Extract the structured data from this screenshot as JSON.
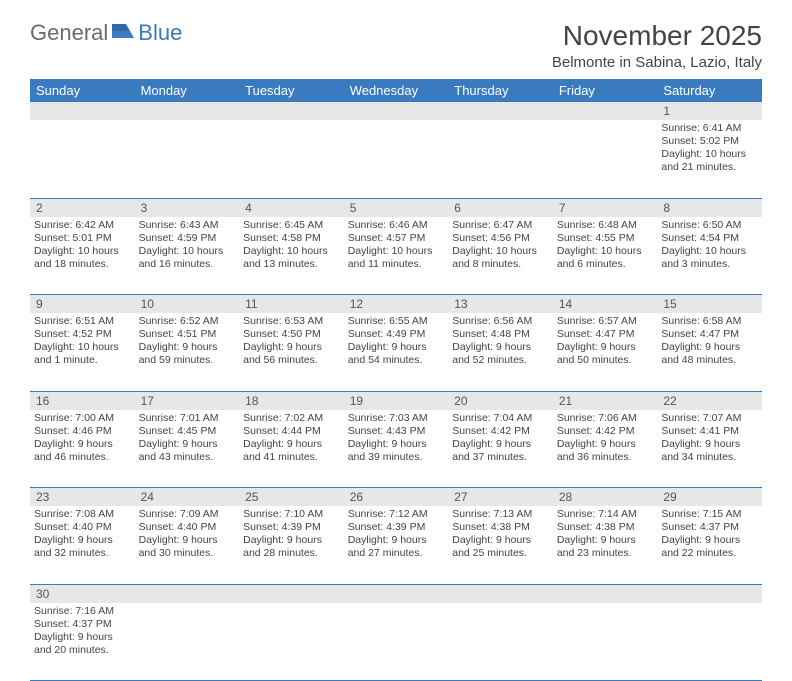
{
  "logo": {
    "text1": "General",
    "text2": "Blue"
  },
  "title": "November 2025",
  "location": "Belmonte in Sabina, Lazio, Italy",
  "colors": {
    "header_bg": "#3a7abf",
    "daynum_bg": "#e7e7e7",
    "text": "#444444"
  },
  "day_headers": [
    "Sunday",
    "Monday",
    "Tuesday",
    "Wednesday",
    "Thursday",
    "Friday",
    "Saturday"
  ],
  "weeks": [
    [
      null,
      null,
      null,
      null,
      null,
      null,
      {
        "n": "1",
        "sr": "Sunrise: 6:41 AM",
        "ss": "Sunset: 5:02 PM",
        "dl": "Daylight: 10 hours and 21 minutes."
      }
    ],
    [
      {
        "n": "2",
        "sr": "Sunrise: 6:42 AM",
        "ss": "Sunset: 5:01 PM",
        "dl": "Daylight: 10 hours and 18 minutes."
      },
      {
        "n": "3",
        "sr": "Sunrise: 6:43 AM",
        "ss": "Sunset: 4:59 PM",
        "dl": "Daylight: 10 hours and 16 minutes."
      },
      {
        "n": "4",
        "sr": "Sunrise: 6:45 AM",
        "ss": "Sunset: 4:58 PM",
        "dl": "Daylight: 10 hours and 13 minutes."
      },
      {
        "n": "5",
        "sr": "Sunrise: 6:46 AM",
        "ss": "Sunset: 4:57 PM",
        "dl": "Daylight: 10 hours and 11 minutes."
      },
      {
        "n": "6",
        "sr": "Sunrise: 6:47 AM",
        "ss": "Sunset: 4:56 PM",
        "dl": "Daylight: 10 hours and 8 minutes."
      },
      {
        "n": "7",
        "sr": "Sunrise: 6:48 AM",
        "ss": "Sunset: 4:55 PM",
        "dl": "Daylight: 10 hours and 6 minutes."
      },
      {
        "n": "8",
        "sr": "Sunrise: 6:50 AM",
        "ss": "Sunset: 4:54 PM",
        "dl": "Daylight: 10 hours and 3 minutes."
      }
    ],
    [
      {
        "n": "9",
        "sr": "Sunrise: 6:51 AM",
        "ss": "Sunset: 4:52 PM",
        "dl": "Daylight: 10 hours and 1 minute."
      },
      {
        "n": "10",
        "sr": "Sunrise: 6:52 AM",
        "ss": "Sunset: 4:51 PM",
        "dl": "Daylight: 9 hours and 59 minutes."
      },
      {
        "n": "11",
        "sr": "Sunrise: 6:53 AM",
        "ss": "Sunset: 4:50 PM",
        "dl": "Daylight: 9 hours and 56 minutes."
      },
      {
        "n": "12",
        "sr": "Sunrise: 6:55 AM",
        "ss": "Sunset: 4:49 PM",
        "dl": "Daylight: 9 hours and 54 minutes."
      },
      {
        "n": "13",
        "sr": "Sunrise: 6:56 AM",
        "ss": "Sunset: 4:48 PM",
        "dl": "Daylight: 9 hours and 52 minutes."
      },
      {
        "n": "14",
        "sr": "Sunrise: 6:57 AM",
        "ss": "Sunset: 4:47 PM",
        "dl": "Daylight: 9 hours and 50 minutes."
      },
      {
        "n": "15",
        "sr": "Sunrise: 6:58 AM",
        "ss": "Sunset: 4:47 PM",
        "dl": "Daylight: 9 hours and 48 minutes."
      }
    ],
    [
      {
        "n": "16",
        "sr": "Sunrise: 7:00 AM",
        "ss": "Sunset: 4:46 PM",
        "dl": "Daylight: 9 hours and 46 minutes."
      },
      {
        "n": "17",
        "sr": "Sunrise: 7:01 AM",
        "ss": "Sunset: 4:45 PM",
        "dl": "Daylight: 9 hours and 43 minutes."
      },
      {
        "n": "18",
        "sr": "Sunrise: 7:02 AM",
        "ss": "Sunset: 4:44 PM",
        "dl": "Daylight: 9 hours and 41 minutes."
      },
      {
        "n": "19",
        "sr": "Sunrise: 7:03 AM",
        "ss": "Sunset: 4:43 PM",
        "dl": "Daylight: 9 hours and 39 minutes."
      },
      {
        "n": "20",
        "sr": "Sunrise: 7:04 AM",
        "ss": "Sunset: 4:42 PM",
        "dl": "Daylight: 9 hours and 37 minutes."
      },
      {
        "n": "21",
        "sr": "Sunrise: 7:06 AM",
        "ss": "Sunset: 4:42 PM",
        "dl": "Daylight: 9 hours and 36 minutes."
      },
      {
        "n": "22",
        "sr": "Sunrise: 7:07 AM",
        "ss": "Sunset: 4:41 PM",
        "dl": "Daylight: 9 hours and 34 minutes."
      }
    ],
    [
      {
        "n": "23",
        "sr": "Sunrise: 7:08 AM",
        "ss": "Sunset: 4:40 PM",
        "dl": "Daylight: 9 hours and 32 minutes."
      },
      {
        "n": "24",
        "sr": "Sunrise: 7:09 AM",
        "ss": "Sunset: 4:40 PM",
        "dl": "Daylight: 9 hours and 30 minutes."
      },
      {
        "n": "25",
        "sr": "Sunrise: 7:10 AM",
        "ss": "Sunset: 4:39 PM",
        "dl": "Daylight: 9 hours and 28 minutes."
      },
      {
        "n": "26",
        "sr": "Sunrise: 7:12 AM",
        "ss": "Sunset: 4:39 PM",
        "dl": "Daylight: 9 hours and 27 minutes."
      },
      {
        "n": "27",
        "sr": "Sunrise: 7:13 AM",
        "ss": "Sunset: 4:38 PM",
        "dl": "Daylight: 9 hours and 25 minutes."
      },
      {
        "n": "28",
        "sr": "Sunrise: 7:14 AM",
        "ss": "Sunset: 4:38 PM",
        "dl": "Daylight: 9 hours and 23 minutes."
      },
      {
        "n": "29",
        "sr": "Sunrise: 7:15 AM",
        "ss": "Sunset: 4:37 PM",
        "dl": "Daylight: 9 hours and 22 minutes."
      }
    ],
    [
      {
        "n": "30",
        "sr": "Sunrise: 7:16 AM",
        "ss": "Sunset: 4:37 PM",
        "dl": "Daylight: 9 hours and 20 minutes."
      },
      null,
      null,
      null,
      null,
      null,
      null
    ]
  ]
}
